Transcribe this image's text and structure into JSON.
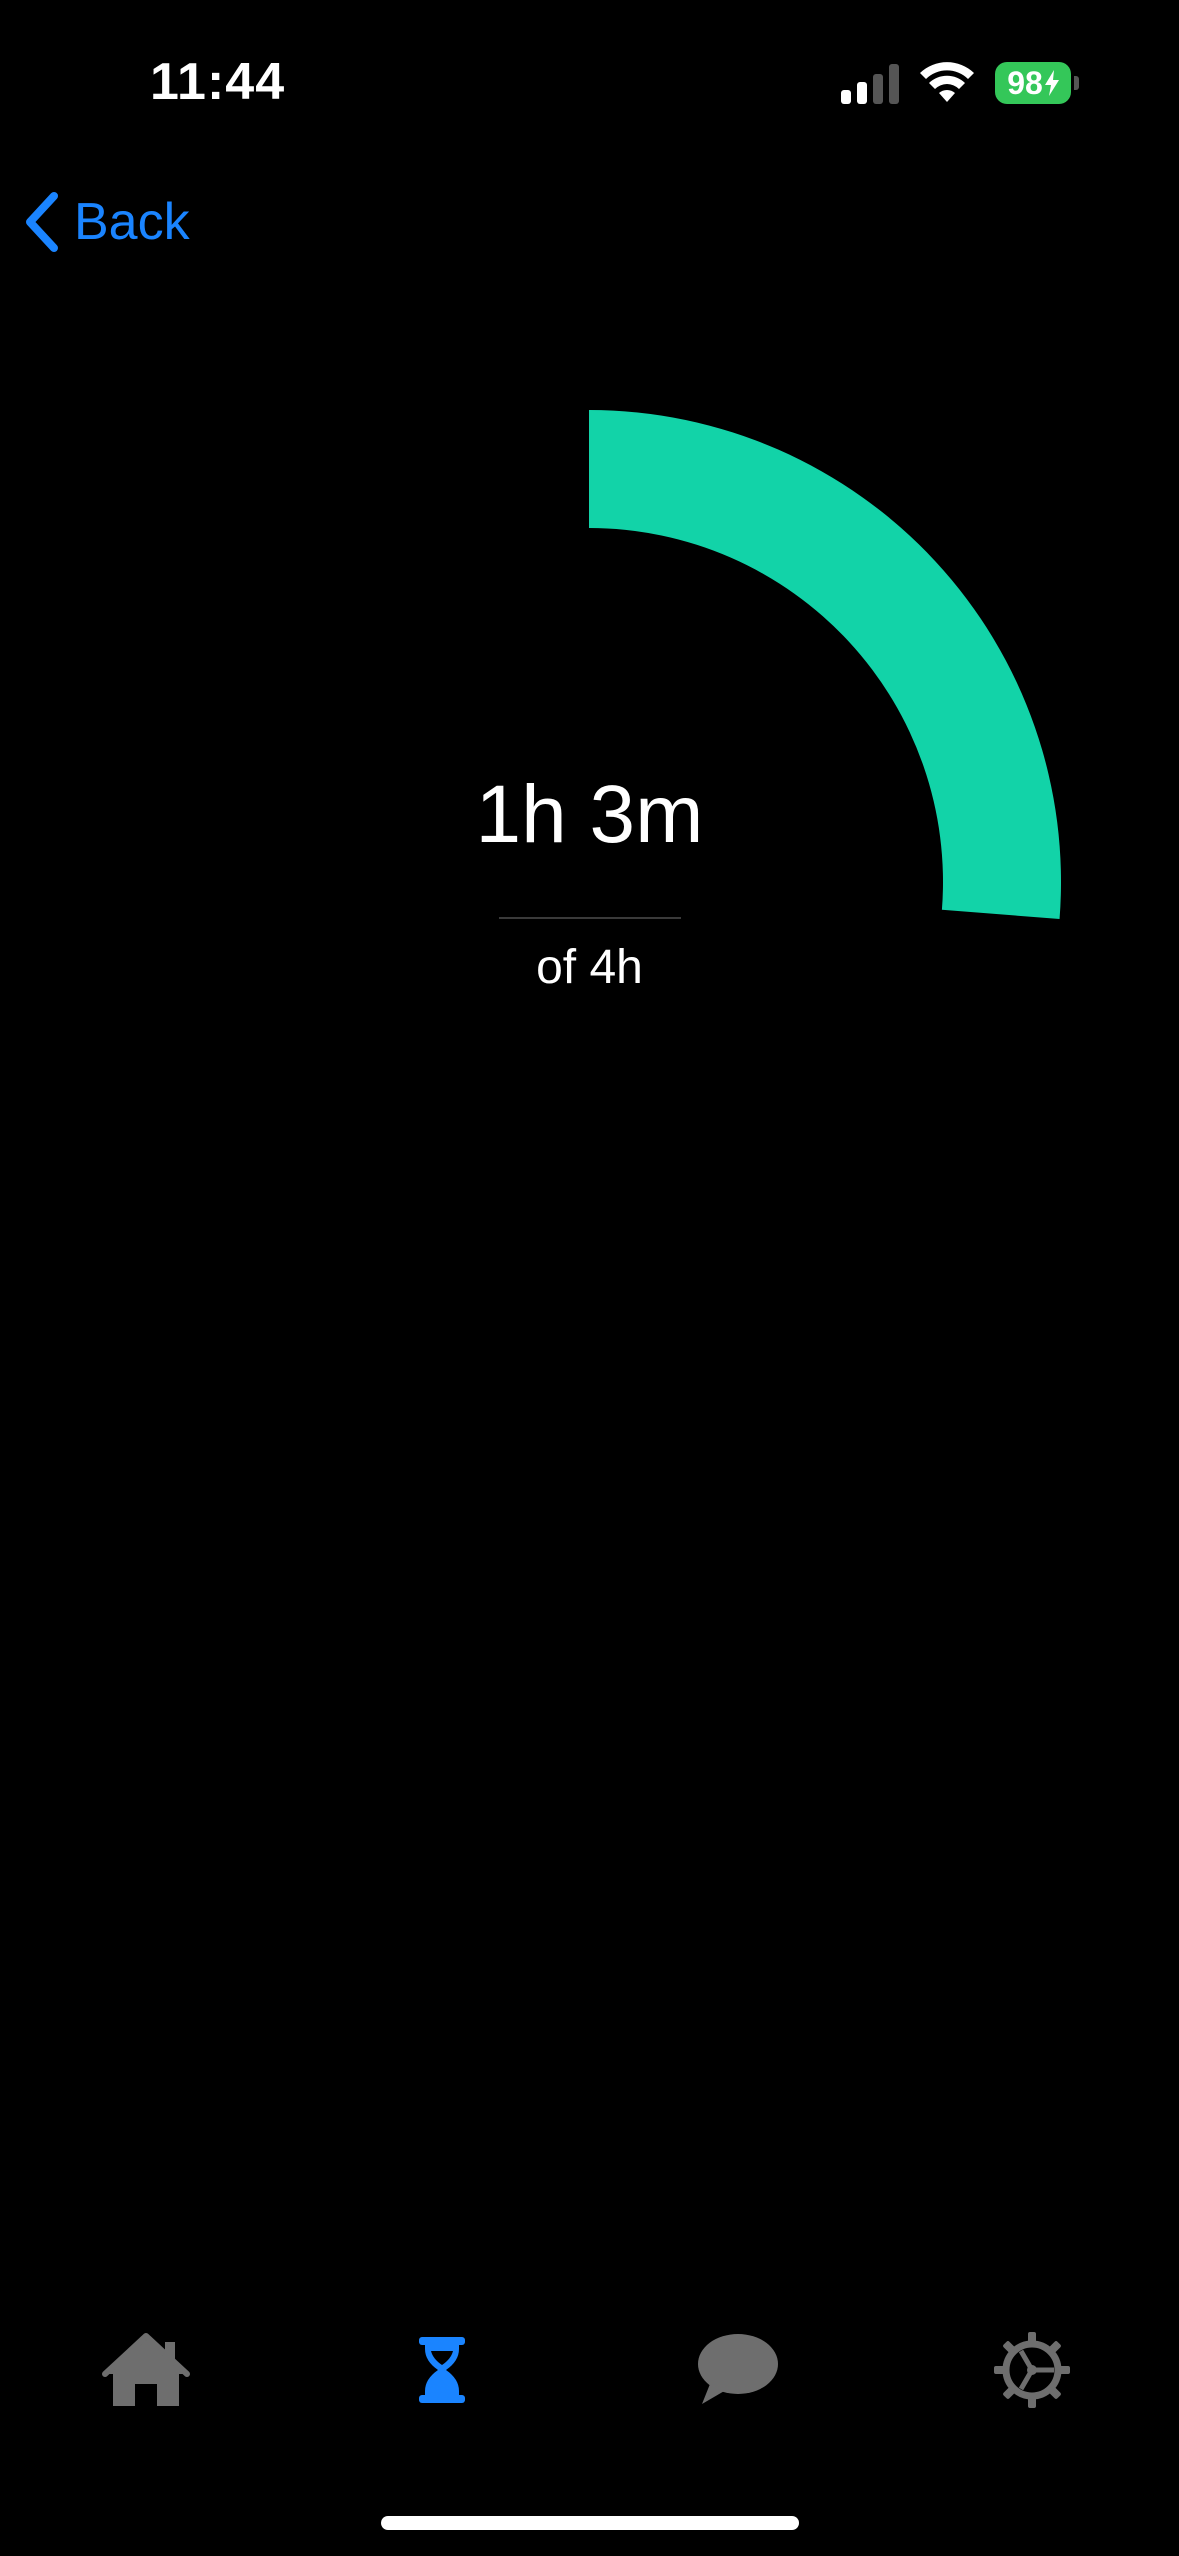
{
  "status_bar": {
    "time": "11:44",
    "battery_percent": "98",
    "signal_bars_on": 2,
    "signal_bars_total": 4,
    "battery_color": "#34c759"
  },
  "nav": {
    "back_label": "Back",
    "back_icon": "chevron-left-icon",
    "accent_color": "#1a84ff"
  },
  "usage": {
    "value_label": "1h 3m",
    "limit_label": "of 4h",
    "progress_fraction": 0.2625,
    "ring_color": "#12d3a8"
  },
  "tabbar": {
    "tabs": [
      {
        "icon": "home-icon",
        "active": false
      },
      {
        "icon": "hourglass-icon",
        "active": true
      },
      {
        "icon": "chat-bubble-icon",
        "active": false
      },
      {
        "icon": "gear-icon",
        "active": false
      }
    ],
    "active_color": "#1a84ff",
    "inactive_color": "#6e6e6e"
  }
}
